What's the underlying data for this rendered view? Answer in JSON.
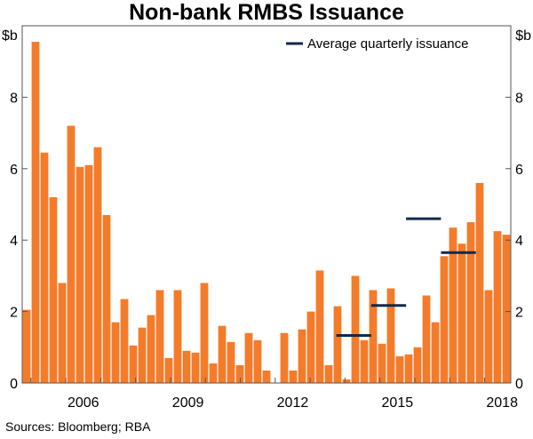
{
  "chart_data": {
    "type": "bar",
    "title": "Non-bank RMBS Issuance",
    "ylabel_left": "$b",
    "ylabel_right": "$b",
    "ylim": [
      0,
      10
    ],
    "yticks": [
      0,
      2,
      4,
      6,
      8
    ],
    "x_ticks": [
      {
        "label": "2006",
        "x": 2006
      },
      {
        "label": "2009",
        "x": 2009
      },
      {
        "label": "2012",
        "x": 2012
      },
      {
        "label": "2015",
        "x": 2015
      },
      {
        "label": "2018",
        "x": 2018
      }
    ],
    "x_start": 2004.75,
    "x_end": 2018.75,
    "series": [
      {
        "name": "Quarterly issuance",
        "color": "#f47b2a",
        "values": [
          2.05,
          9.55,
          6.45,
          5.2,
          2.8,
          7.2,
          6.05,
          6.1,
          6.6,
          4.7,
          1.7,
          2.35,
          1.05,
          1.55,
          1.9,
          2.6,
          0.7,
          2.6,
          0.9,
          0.85,
          2.8,
          0.55,
          1.6,
          1.15,
          0.5,
          1.4,
          1.2,
          0.35,
          0.0,
          1.4,
          0.35,
          1.5,
          2.0,
          3.15,
          0.5,
          2.15,
          0.1,
          3.0,
          1.2,
          2.6,
          1.1,
          2.65,
          0.75,
          0.8,
          1.0,
          2.45,
          1.7,
          3.55,
          4.35,
          3.9,
          4.5,
          5.6,
          2.6,
          4.25,
          4.15
        ]
      }
    ],
    "average_quarterly_issuance": [
      {
        "period": "2014",
        "value": 1.33
      },
      {
        "period": "2015",
        "value": 2.17
      },
      {
        "period": "2016",
        "value": 4.6
      },
      {
        "period": "2017",
        "value": 3.65
      }
    ],
    "legend": {
      "label": "Average quarterly issuance",
      "position": "top-right",
      "color": "#10294a"
    },
    "source": "Sources: Bloomberg; RBA"
  }
}
